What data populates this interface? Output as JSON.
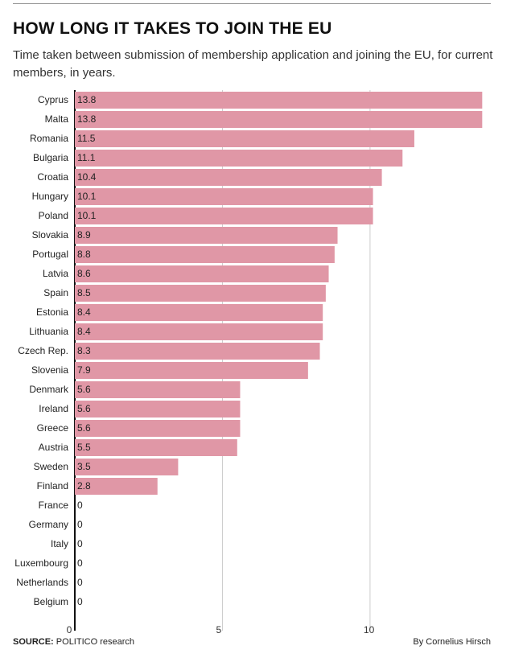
{
  "header": {
    "title": "HOW LONG IT TAKES TO JOIN THE EU",
    "subtitle": "Time taken between submission of membership application and joining the EU, for current members, in years."
  },
  "footer": {
    "source_label": "SOURCE:",
    "source_text": "POLITICO research",
    "credit": "By Cornelius Hirsch"
  },
  "colors": {
    "bar": "#e097a6",
    "gridline": "#cccccc",
    "axis": "#111111"
  },
  "chart_data": {
    "type": "bar",
    "orientation": "horizontal",
    "categories": [
      "Cyprus",
      "Malta",
      "Romania",
      "Bulgaria",
      "Croatia",
      "Hungary",
      "Poland",
      "Slovakia",
      "Portugal",
      "Latvia",
      "Spain",
      "Estonia",
      "Lithuania",
      "Czech Rep.",
      "Slovenia",
      "Denmark",
      "Ireland",
      "Greece",
      "Austria",
      "Sweden",
      "Finland",
      "France",
      "Germany",
      "Italy",
      "Luxembourg",
      "Netherlands",
      "Belgium"
    ],
    "values": [
      13.8,
      13.8,
      11.5,
      11.1,
      10.4,
      10.1,
      10.1,
      8.9,
      8.8,
      8.6,
      8.5,
      8.4,
      8.4,
      8.3,
      7.9,
      5.6,
      5.6,
      5.6,
      5.5,
      3.5,
      2.8,
      0,
      0,
      0,
      0,
      0,
      0
    ],
    "value_labels": [
      "13.8",
      "13.8",
      "11.5",
      "11.1",
      "10.4",
      "10.1",
      "10.1",
      "8.9",
      "8.8",
      "8.6",
      "8.5",
      "8.4",
      "8.4",
      "8.3",
      "7.9",
      "5.6",
      "5.6",
      "5.6",
      "5.5",
      "3.5",
      "2.8",
      "0",
      "0",
      "0",
      "0",
      "0",
      "0"
    ],
    "x_ticks": [
      0,
      5,
      10
    ],
    "x_tick_labels": [
      "0",
      "5",
      "10"
    ],
    "xlim": [
      0,
      13.9
    ],
    "grid": true
  }
}
